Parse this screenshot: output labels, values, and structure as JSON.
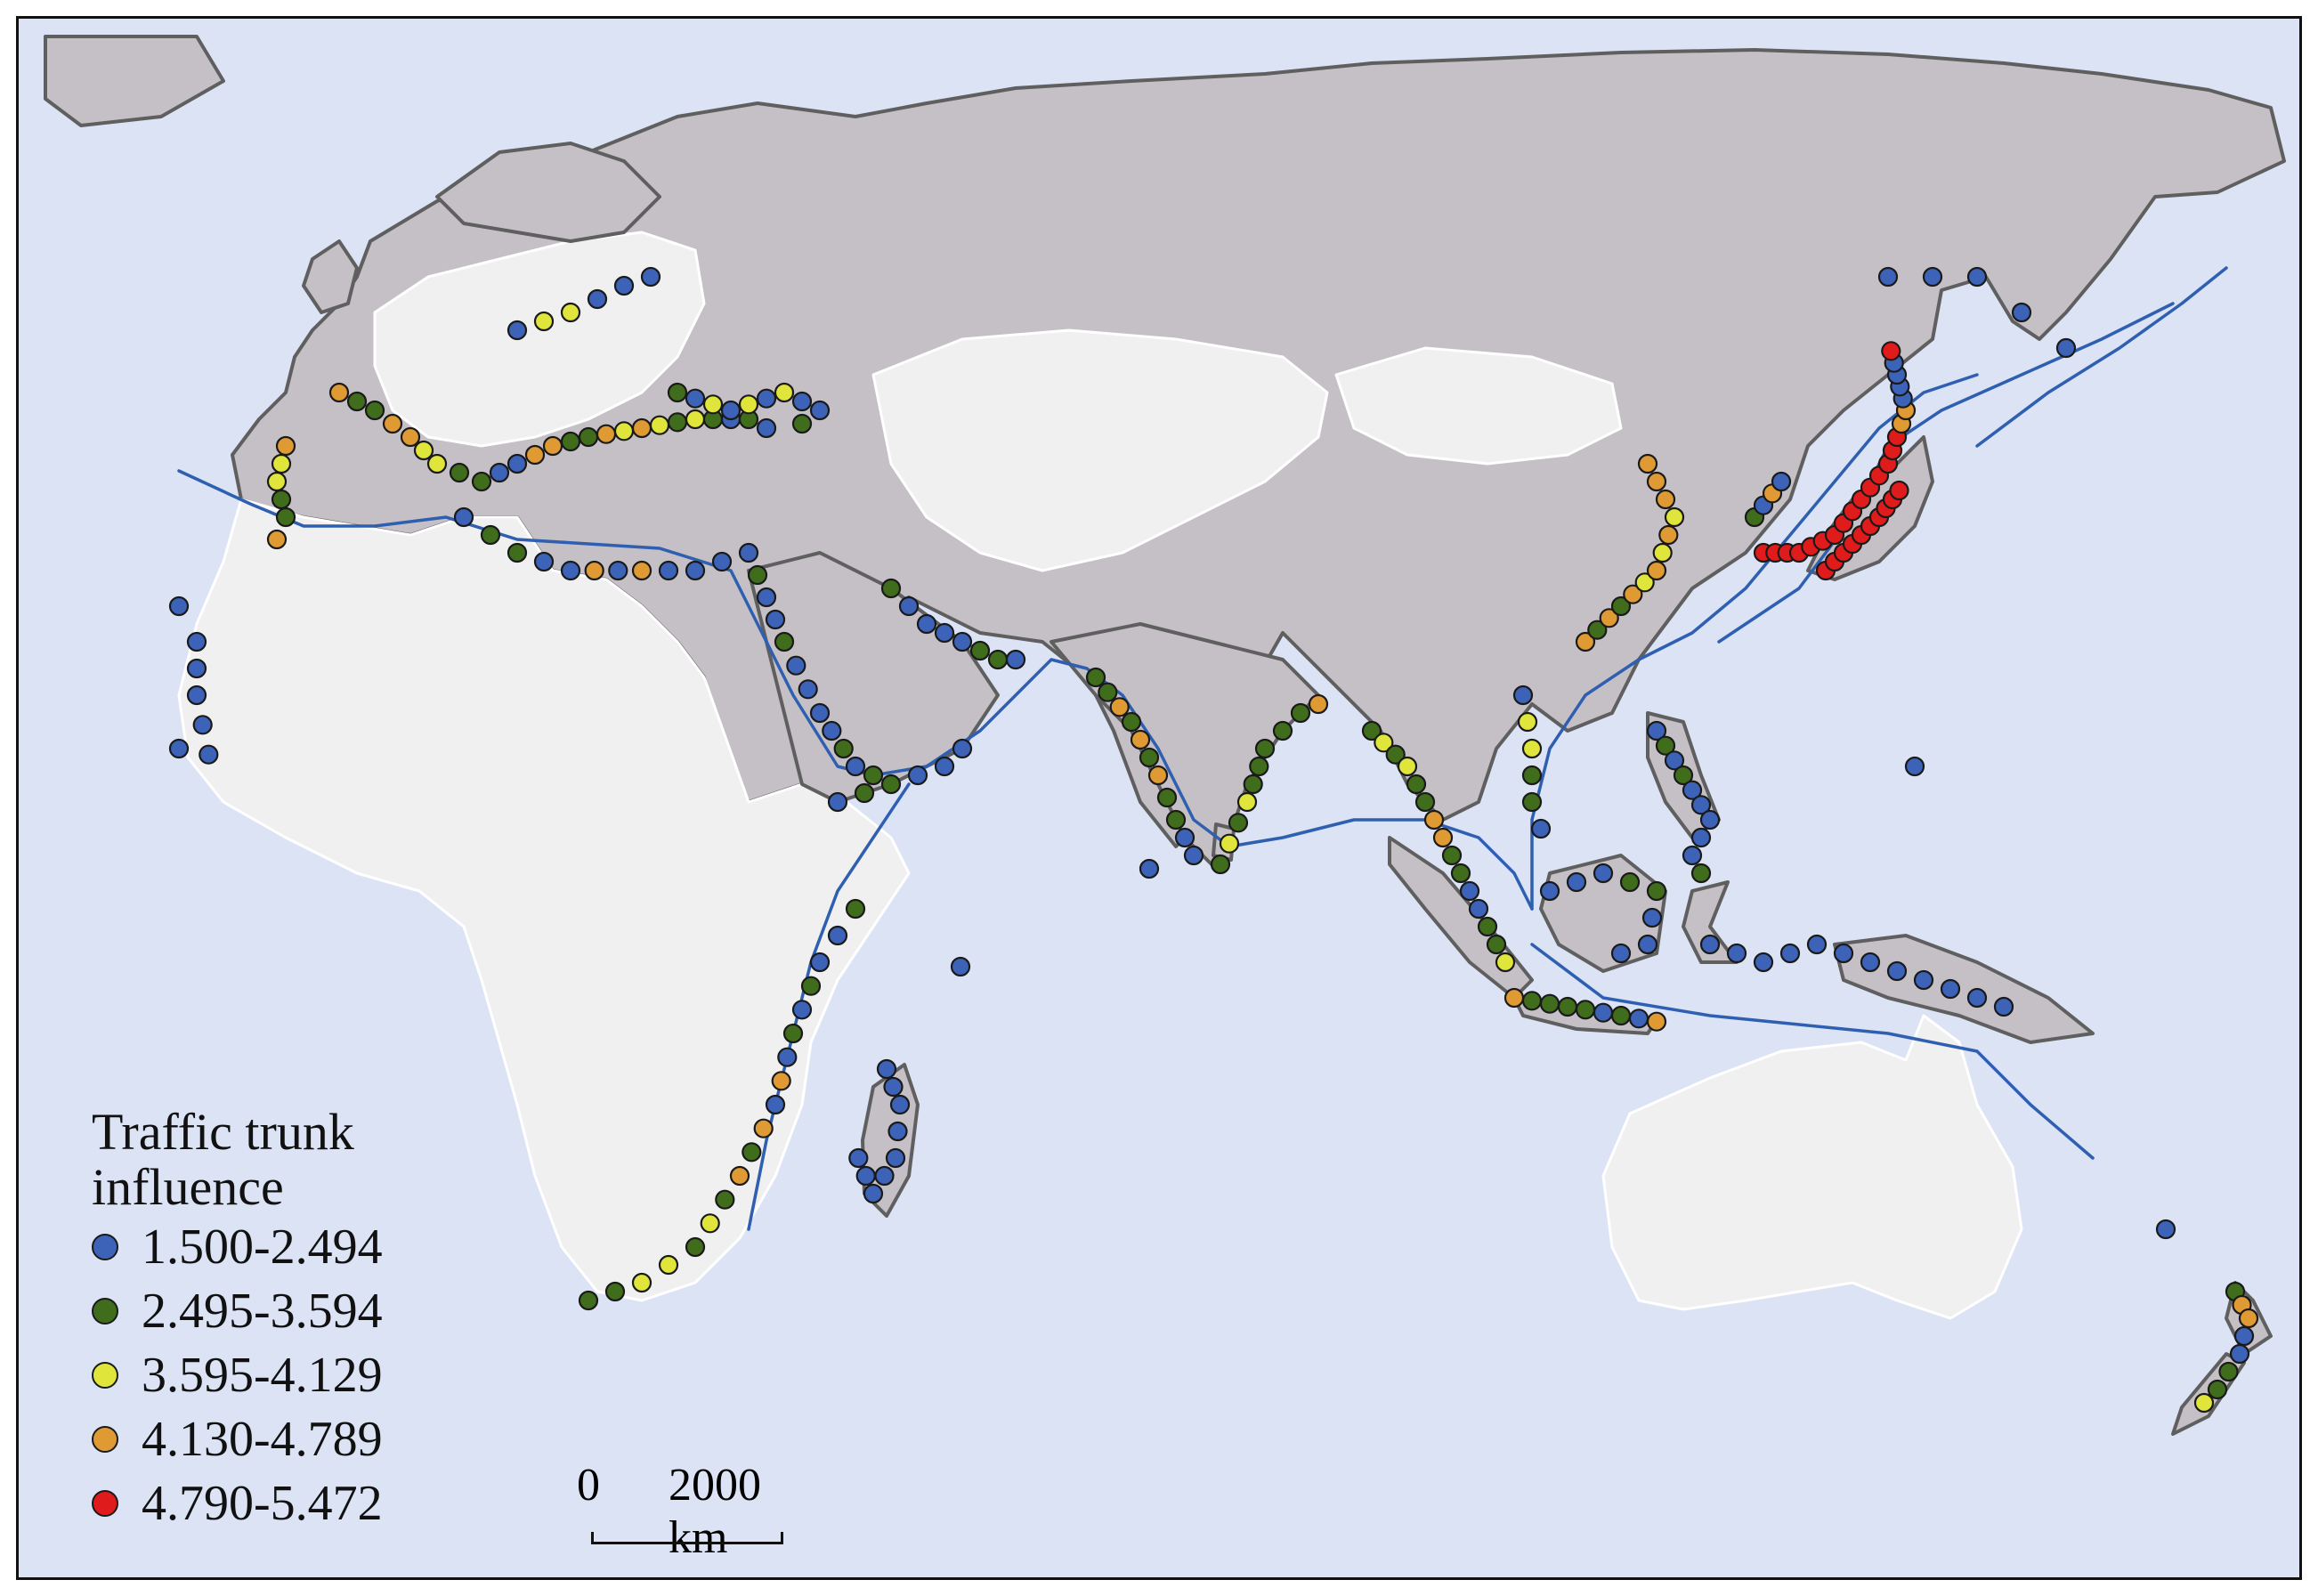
{
  "map": {
    "legend": {
      "title": "Traffic trunk influence",
      "classes": [
        {
          "label": "1.500-2.494",
          "color": "#3c63b8"
        },
        {
          "label": "2.495-3.594",
          "color": "#3f6d1c"
        },
        {
          "label": "3.595-4.129",
          "color": "#dfe53a"
        },
        {
          "label": "4.130-4.789",
          "color": "#df9a33"
        },
        {
          "label": "4.790-5.472",
          "color": "#e01b1b"
        }
      ]
    },
    "scale_bar": {
      "zero_label": "0",
      "distance_label": "2000 km"
    },
    "colors": {
      "ocean": "#dbe3f5",
      "land_context": "#c5c0c6",
      "land_highlight": "#f0f0f0",
      "route": "#2f5fb0",
      "coastline": "#5f5f5f"
    }
  }
}
